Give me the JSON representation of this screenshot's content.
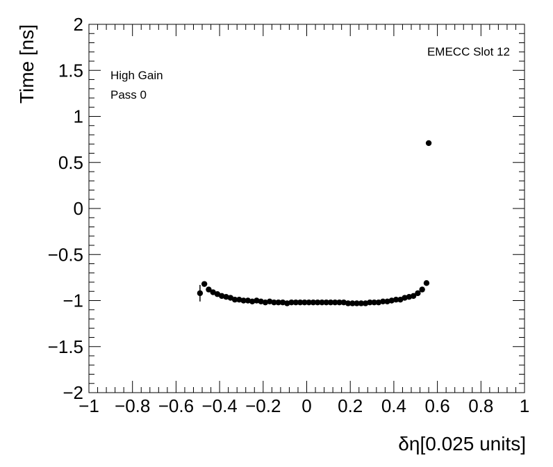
{
  "chart_data": {
    "type": "scatter",
    "title": "",
    "xlabel": "δη[0.025 units]",
    "ylabel": "Time [ns]",
    "xlim": [
      -1,
      1
    ],
    "ylim": [
      -2,
      2
    ],
    "grid": false,
    "legend": "none",
    "annotations": {
      "top_right": "EMECC Slot 12",
      "top_left_line1": "High Gain",
      "top_left_line2": "Pass 0"
    },
    "x_tick_labels": [
      "−1",
      "−0.8",
      "−0.6",
      "−0.4",
      "−0.2",
      "0",
      "0.2",
      "0.4",
      "0.6",
      "0.8",
      "1"
    ],
    "y_tick_labels": [
      "−2",
      "−1.5",
      "−1",
      "−0.5",
      "0",
      "0.5",
      "1",
      "1.5",
      "2"
    ],
    "marker_color": "#000000",
    "series": [
      {
        "points": [
          {
            "x": -0.49,
            "y": -0.92,
            "err": 0.09
          },
          {
            "x": -0.47,
            "y": -0.82,
            "err": 0.02
          },
          {
            "x": -0.45,
            "y": -0.88,
            "err": 0.02
          },
          {
            "x": -0.43,
            "y": -0.91,
            "err": 0.01
          },
          {
            "x": -0.41,
            "y": -0.93,
            "err": 0.01
          },
          {
            "x": -0.39,
            "y": -0.95,
            "err": 0.01
          },
          {
            "x": -0.37,
            "y": -0.96,
            "err": 0.01
          },
          {
            "x": -0.35,
            "y": -0.97,
            "err": 0.01
          },
          {
            "x": -0.33,
            "y": -0.99,
            "err": 0.01
          },
          {
            "x": -0.31,
            "y": -0.99,
            "err": 0.01
          },
          {
            "x": -0.29,
            "y": -1.0,
            "err": 0.01
          },
          {
            "x": -0.27,
            "y": -1.0,
            "err": 0.01
          },
          {
            "x": -0.25,
            "y": -1.01,
            "err": 0.01
          },
          {
            "x": -0.23,
            "y": -1.0,
            "err": 0.01
          },
          {
            "x": -0.21,
            "y": -1.01,
            "err": 0.01
          },
          {
            "x": -0.19,
            "y": -1.02,
            "err": 0.01
          },
          {
            "x": -0.17,
            "y": -1.01,
            "err": 0.01
          },
          {
            "x": -0.15,
            "y": -1.02,
            "err": 0.01
          },
          {
            "x": -0.13,
            "y": -1.02,
            "err": 0.01
          },
          {
            "x": -0.11,
            "y": -1.02,
            "err": 0.01
          },
          {
            "x": -0.09,
            "y": -1.03,
            "err": 0.01
          },
          {
            "x": -0.07,
            "y": -1.02,
            "err": 0.01
          },
          {
            "x": -0.05,
            "y": -1.02,
            "err": 0.01
          },
          {
            "x": -0.03,
            "y": -1.02,
            "err": 0.01
          },
          {
            "x": -0.01,
            "y": -1.02,
            "err": 0.01
          },
          {
            "x": 0.01,
            "y": -1.02,
            "err": 0.01
          },
          {
            "x": 0.03,
            "y": -1.02,
            "err": 0.01
          },
          {
            "x": 0.05,
            "y": -1.02,
            "err": 0.01
          },
          {
            "x": 0.07,
            "y": -1.02,
            "err": 0.01
          },
          {
            "x": 0.09,
            "y": -1.02,
            "err": 0.01
          },
          {
            "x": 0.11,
            "y": -1.02,
            "err": 0.01
          },
          {
            "x": 0.13,
            "y": -1.02,
            "err": 0.01
          },
          {
            "x": 0.15,
            "y": -1.02,
            "err": 0.01
          },
          {
            "x": 0.17,
            "y": -1.02,
            "err": 0.01
          },
          {
            "x": 0.19,
            "y": -1.03,
            "err": 0.01
          },
          {
            "x": 0.21,
            "y": -1.03,
            "err": 0.01
          },
          {
            "x": 0.23,
            "y": -1.03,
            "err": 0.01
          },
          {
            "x": 0.25,
            "y": -1.03,
            "err": 0.01
          },
          {
            "x": 0.27,
            "y": -1.03,
            "err": 0.01
          },
          {
            "x": 0.29,
            "y": -1.02,
            "err": 0.01
          },
          {
            "x": 0.31,
            "y": -1.02,
            "err": 0.01
          },
          {
            "x": 0.33,
            "y": -1.02,
            "err": 0.01
          },
          {
            "x": 0.35,
            "y": -1.01,
            "err": 0.01
          },
          {
            "x": 0.37,
            "y": -1.01,
            "err": 0.01
          },
          {
            "x": 0.39,
            "y": -1.0,
            "err": 0.01
          },
          {
            "x": 0.41,
            "y": -0.99,
            "err": 0.01
          },
          {
            "x": 0.43,
            "y": -0.99,
            "err": 0.01
          },
          {
            "x": 0.45,
            "y": -0.97,
            "err": 0.01
          },
          {
            "x": 0.47,
            "y": -0.96,
            "err": 0.01
          },
          {
            "x": 0.49,
            "y": -0.95,
            "err": 0.01
          },
          {
            "x": 0.51,
            "y": -0.92,
            "err": 0.01
          },
          {
            "x": 0.53,
            "y": -0.88,
            "err": 0.01
          },
          {
            "x": 0.55,
            "y": -0.81,
            "err": 0.01
          },
          {
            "x": 0.56,
            "y": 0.71,
            "err": 0.01
          }
        ]
      }
    ]
  }
}
